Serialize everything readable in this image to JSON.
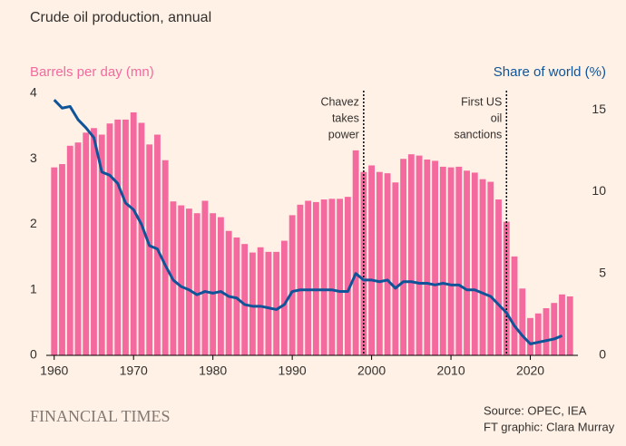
{
  "chart_data": {
    "type": "combo",
    "title": "Crude oil production, annual",
    "x": [
      1960,
      1961,
      1962,
      1963,
      1964,
      1965,
      1966,
      1967,
      1968,
      1969,
      1970,
      1971,
      1972,
      1973,
      1974,
      1975,
      1976,
      1977,
      1978,
      1979,
      1980,
      1981,
      1982,
      1983,
      1984,
      1985,
      1986,
      1987,
      1988,
      1989,
      1990,
      1991,
      1992,
      1993,
      1994,
      1995,
      1996,
      1997,
      1998,
      1999,
      2000,
      2001,
      2002,
      2003,
      2004,
      2005,
      2006,
      2007,
      2008,
      2009,
      2010,
      2011,
      2012,
      2013,
      2014,
      2015,
      2016,
      2017,
      2018,
      2019,
      2020,
      2021,
      2022,
      2023,
      2024,
      2025
    ],
    "series": [
      {
        "name": "Barrels per day (mn)",
        "type": "bar",
        "color": "#f4699e",
        "values": [
          2.87,
          2.92,
          3.2,
          3.25,
          3.4,
          3.47,
          3.37,
          3.54,
          3.6,
          3.6,
          3.71,
          3.55,
          3.22,
          3.37,
          2.98,
          2.35,
          2.29,
          2.24,
          2.17,
          2.36,
          2.17,
          2.11,
          1.9,
          1.8,
          1.7,
          1.57,
          1.65,
          1.58,
          1.58,
          1.75,
          2.14,
          2.3,
          2.36,
          2.34,
          2.38,
          2.39,
          2.39,
          2.42,
          3.13,
          2.8,
          2.9,
          2.8,
          2.78,
          2.64,
          3.0,
          3.07,
          3.05,
          2.99,
          2.97,
          2.88,
          2.87,
          2.88,
          2.82,
          2.79,
          2.69,
          2.65,
          2.38,
          2.04,
          1.51,
          1.02,
          0.57,
          0.64,
          0.72,
          0.8,
          0.93,
          0.9
        ]
      },
      {
        "name": "Share of world (%)",
        "type": "line",
        "axis": "y2",
        "color": "#0f5499",
        "values": [
          15.6,
          15.1,
          15.2,
          14.4,
          13.9,
          13.3,
          11.2,
          11.0,
          10.5,
          9.3,
          8.9,
          8.0,
          6.7,
          6.5,
          5.5,
          4.6,
          4.2,
          4.0,
          3.7,
          3.9,
          3.8,
          3.9,
          3.6,
          3.5,
          3.1,
          3.0,
          3.0,
          2.9,
          2.8,
          3.1,
          3.9,
          4.0,
          4.0,
          4.0,
          4.0,
          4.0,
          3.9,
          3.9,
          5.0,
          4.6,
          4.6,
          4.5,
          4.6,
          4.1,
          4.5,
          4.5,
          4.4,
          4.4,
          4.3,
          4.4,
          4.3,
          4.3,
          4.0,
          4.0,
          3.8,
          3.6,
          3.1,
          2.6,
          1.8,
          1.2,
          0.7,
          0.8,
          0.9,
          1.0,
          1.2,
          null
        ]
      }
    ],
    "xlim": [
      1959,
      2026
    ],
    "xticks": [
      1960,
      1970,
      1980,
      1990,
      2000,
      2010,
      2020
    ],
    "ylim": [
      0,
      4
    ],
    "yticks": [
      0,
      1,
      2,
      3,
      4
    ],
    "y2lim": [
      0,
      16
    ],
    "y2ticks": [
      0,
      5,
      10,
      15
    ],
    "annotations": [
      {
        "x": 1999,
        "lines": [
          "Chavez",
          "takes",
          "power"
        ]
      },
      {
        "x": 2017,
        "lines": [
          "First US",
          "oil",
          "sanctions"
        ]
      }
    ],
    "source": "Source: OPEC, IEA",
    "credit": "FT graphic: Clara Murray",
    "brand": "FINANCIAL TIMES"
  }
}
